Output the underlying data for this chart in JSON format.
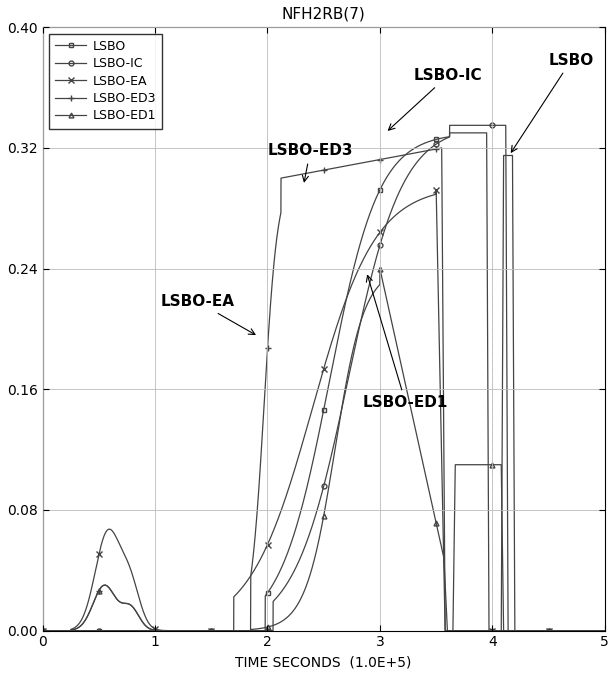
{
  "title": "NFH2RB(7)",
  "xlabel": "TIME SECONDS  (1.0E+5)",
  "xlim": [
    0,
    5
  ],
  "ylim": [
    0,
    0.4
  ],
  "yticks": [
    0,
    0.08,
    0.16,
    0.24,
    0.32,
    0.4
  ],
  "xticks": [
    0,
    1,
    2,
    3,
    4,
    5
  ],
  "background_color": "#ffffff",
  "grid_color": "#bbbbbb",
  "series_color": "#444444"
}
